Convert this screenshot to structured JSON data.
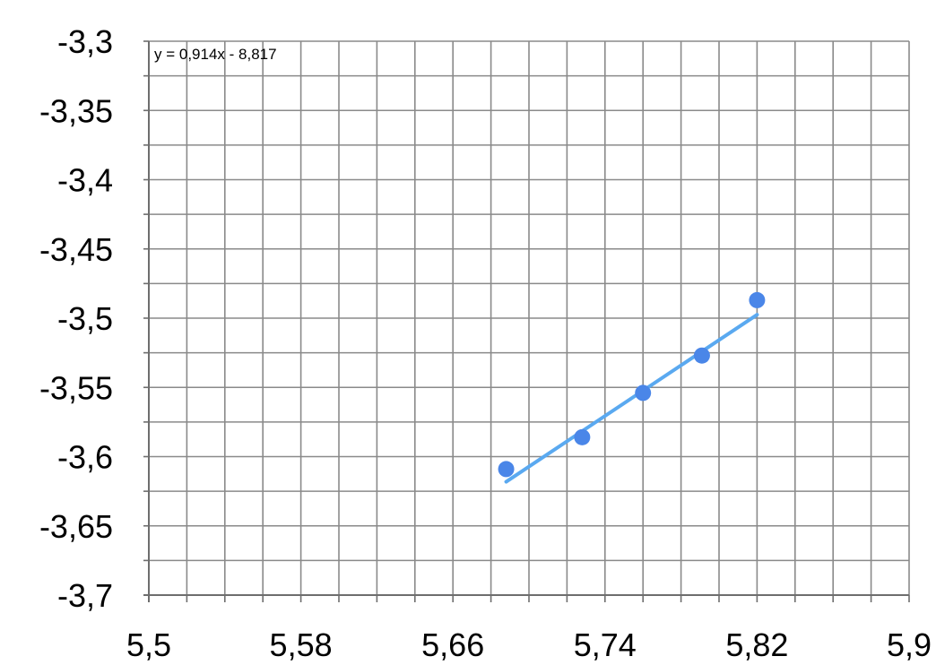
{
  "chart_data": {
    "type": "scatter",
    "title": "",
    "xlabel": "",
    "ylabel": "",
    "xlim": [
      5.5,
      5.9
    ],
    "ylim": [
      -3.7,
      -3.3
    ],
    "x_ticks": [
      5.5,
      5.58,
      5.66,
      5.74,
      5.82,
      5.9
    ],
    "x_tick_labels": [
      "5,5",
      "5,58",
      "5,66",
      "5,74",
      "5,82",
      "5,9"
    ],
    "y_ticks": [
      -3.3,
      -3.35,
      -3.4,
      -3.45,
      -3.5,
      -3.55,
      -3.6,
      -3.65,
      -3.7
    ],
    "y_tick_labels": [
      "-3,3",
      "-3,35",
      "-3,4",
      "-3,45",
      "-3,5",
      "-3,55",
      "-3,6",
      "-3,65",
      "-3,7"
    ],
    "x_minor_step": 0.02,
    "y_minor_step": 0.025,
    "grid": true,
    "legend": "none",
    "series": [
      {
        "x": [
          5.688,
          5.728,
          5.76,
          5.791,
          5.82
        ],
        "y": [
          -3.609,
          -3.586,
          -3.554,
          -3.527,
          -3.487
        ],
        "color": "#4a86e8"
      }
    ],
    "trendline": {
      "slope": 0.914,
      "intercept": -8.817,
      "x_range": [
        5.688,
        5.82
      ],
      "color": "#5aa9f0",
      "equation": "y = 0,914x - 8,817"
    },
    "colors": {
      "grid": "#8a8a8a",
      "axis": "#6e6e6e",
      "marker": "#4a86e8",
      "trendline": "#5aa9f0"
    }
  }
}
